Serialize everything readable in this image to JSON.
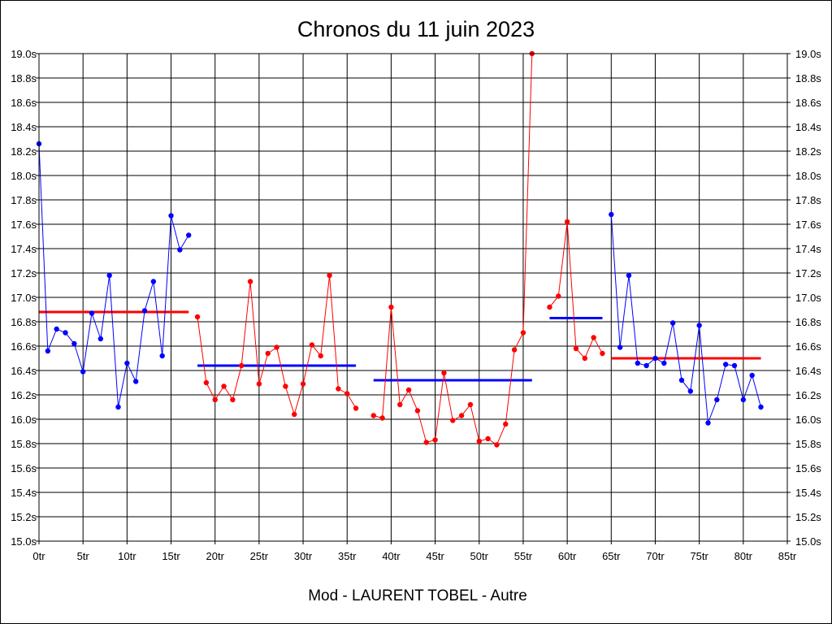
{
  "chart_data": {
    "type": "line",
    "title": "Chronos du 11 juin 2023",
    "footer": "Mod - LAURENT TOBEL - Autre",
    "xlabel": "",
    "ylabel": "",
    "xlim": [
      0,
      85
    ],
    "ylim": [
      15.0,
      19.0
    ],
    "grid": true,
    "legend": "none",
    "x_ticks": [
      "0tr",
      "5tr",
      "10tr",
      "15tr",
      "20tr",
      "25tr",
      "30tr",
      "35tr",
      "40tr",
      "45tr",
      "50tr",
      "55tr",
      "60tr",
      "65tr",
      "70tr",
      "75tr",
      "80tr",
      "85tr"
    ],
    "x_tick_values": [
      0,
      5,
      10,
      15,
      20,
      25,
      30,
      35,
      40,
      45,
      50,
      55,
      60,
      65,
      70,
      75,
      80,
      85
    ],
    "y_ticks": [
      "15.0s",
      "15.2s",
      "15.4s",
      "15.6s",
      "15.8s",
      "16.0s",
      "16.2s",
      "16.4s",
      "16.6s",
      "16.8s",
      "17.0s",
      "17.2s",
      "17.4s",
      "17.6s",
      "17.8s",
      "18.0s",
      "18.2s",
      "18.4s",
      "18.6s",
      "18.8s",
      "19.0s"
    ],
    "y_tick_values": [
      15.0,
      15.2,
      15.4,
      15.6,
      15.8,
      16.0,
      16.2,
      16.4,
      16.6,
      16.8,
      17.0,
      17.2,
      17.4,
      17.6,
      17.8,
      18.0,
      18.2,
      18.4,
      18.6,
      18.8,
      19.0
    ],
    "series": [
      {
        "color": "#0000ff",
        "x": [
          0,
          1,
          2,
          3,
          4,
          5,
          6,
          7,
          8,
          9,
          10,
          11,
          12,
          13,
          14,
          15,
          16,
          17
        ],
        "values": [
          18.26,
          16.56,
          16.74,
          16.71,
          16.62,
          16.39,
          16.87,
          16.66,
          17.18,
          16.1,
          16.46,
          16.31,
          16.89,
          17.13,
          16.52,
          17.67,
          17.39,
          17.51
        ],
        "mean": 16.88,
        "mean_color": "#ff0000",
        "mean_range": [
          0,
          17
        ]
      },
      {
        "color": "#ff0000",
        "x": [
          18,
          19,
          20,
          21,
          22,
          23,
          24,
          25,
          26,
          27,
          28,
          29,
          30,
          31,
          32,
          33,
          34,
          35,
          36
        ],
        "values": [
          16.84,
          16.3,
          16.16,
          16.27,
          16.16,
          16.44,
          17.13,
          16.29,
          16.54,
          16.59,
          16.27,
          16.04,
          16.29,
          16.61,
          16.52,
          17.18,
          16.25,
          16.21,
          16.09
        ],
        "mean": 16.44,
        "mean_color": "#0000ff",
        "mean_range": [
          18,
          36
        ]
      },
      {
        "color": "#ff0000",
        "x": [
          38,
          39,
          40,
          41,
          42,
          43,
          44,
          45,
          46,
          47,
          48,
          49,
          50,
          51,
          52,
          53,
          54,
          55,
          56
        ],
        "values": [
          16.03,
          16.01,
          16.92,
          16.12,
          16.24,
          16.07,
          15.81,
          15.83,
          16.38,
          15.99,
          16.03,
          16.12,
          15.82,
          15.84,
          15.79,
          15.96,
          16.57,
          16.71,
          19.0
        ],
        "mean": 16.32,
        "mean_color": "#0000ff",
        "mean_range": [
          38,
          56
        ]
      },
      {
        "color": "#ff0000",
        "x": [
          58,
          59,
          60,
          61,
          62,
          63,
          64
        ],
        "values": [
          16.92,
          17.01,
          17.62,
          16.58,
          16.5,
          16.67,
          16.54
        ],
        "mean": 16.83,
        "mean_color": "#0000ff",
        "mean_range": [
          58,
          64
        ]
      },
      {
        "color": "#0000ff",
        "x": [
          65,
          66,
          67,
          68,
          69,
          70,
          71,
          72,
          73,
          74,
          75,
          76,
          77,
          78,
          79,
          80,
          81,
          82
        ],
        "values": [
          17.68,
          16.59,
          17.18,
          16.46,
          16.44,
          16.5,
          16.46,
          16.79,
          16.32,
          16.23,
          16.77,
          15.97,
          16.16,
          16.45,
          16.44,
          16.16,
          16.36,
          16.1
        ],
        "mean": 16.5,
        "mean_color": "#ff0000",
        "mean_range": [
          65,
          82
        ]
      }
    ]
  }
}
